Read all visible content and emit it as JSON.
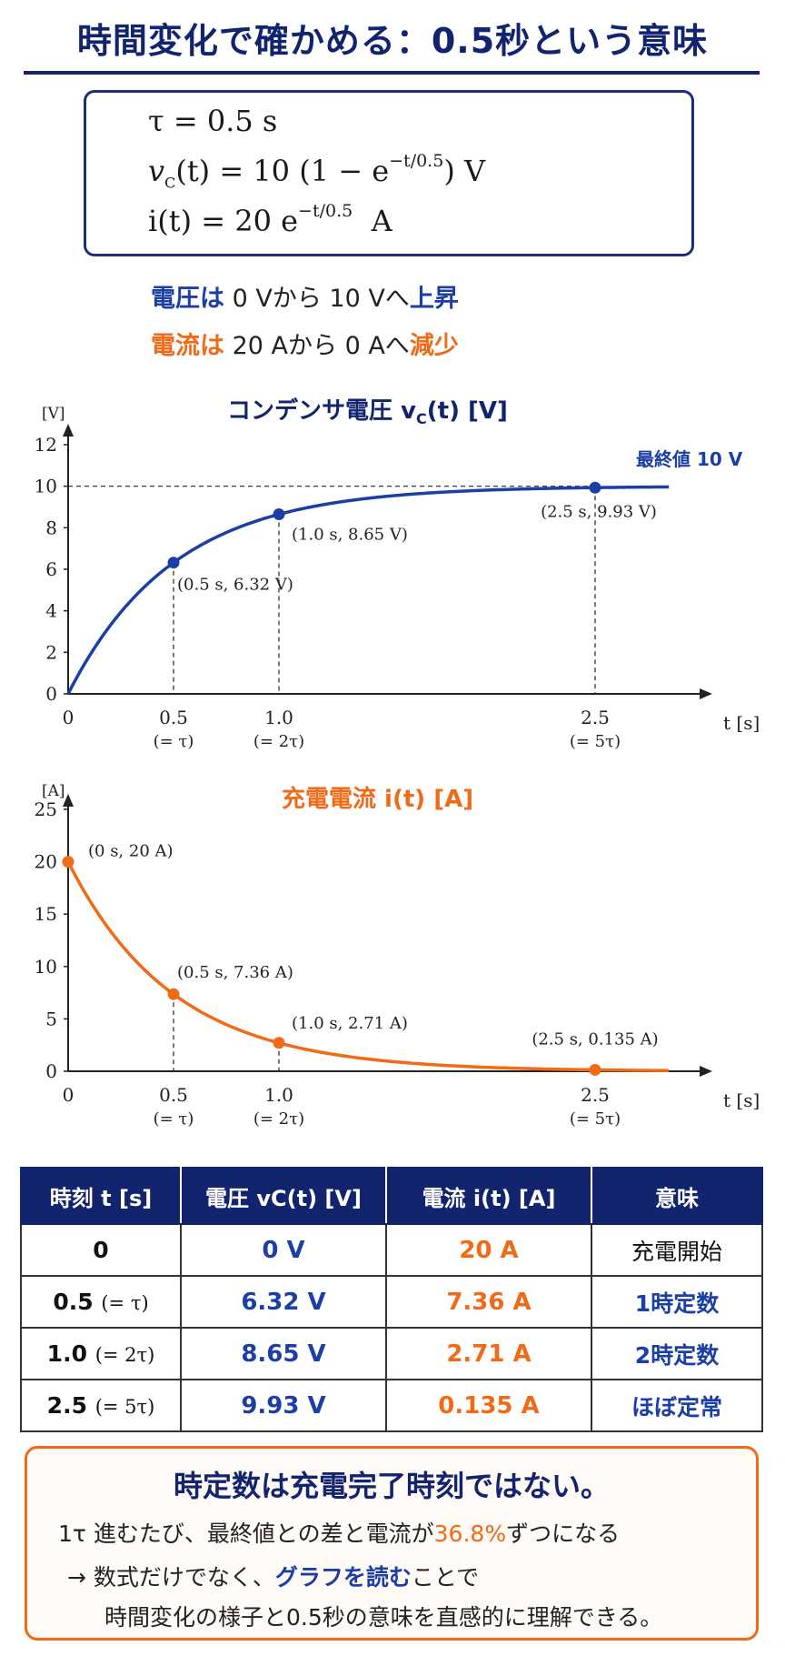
{
  "title": "時間変化で確かめる：0.5秒という意味",
  "formulas": {
    "tau": "τ = 0.5 s",
    "vc_lhs": "v",
    "vc_sub": "C",
    "vc_rest": "(t) = 10 (1 − e",
    "vc_exp": "−t/0.5",
    "vc_unit": ") V",
    "i_lhs": "i(t)   = 20 e",
    "i_exp": "−t/0.5",
    "i_unit": "A"
  },
  "notes": {
    "voltage": {
      "head": "電圧は",
      "mid": " 0 Vから 10 Vへ",
      "tail": "上昇"
    },
    "current": {
      "head": "電流は",
      "mid": " 20 Aから 0 Aへ",
      "tail": "減少"
    }
  },
  "voltage_chart": {
    "title": "コンデンサ電圧 v",
    "title_sub": "C",
    "title_tail": "(t) [V]",
    "unit_label": "[V]",
    "final_label": "最終値 10 V",
    "x_axis_label": "t [s]",
    "point_labels": [
      "(0.5 s, 6.32 V)",
      "(1.0 s, 8.65 V)",
      "(2.5 s, 9.93 V)"
    ],
    "tau_labels": [
      "(= τ)",
      "(= 2τ)",
      "(= 5τ)"
    ]
  },
  "current_chart": {
    "title": "充電電流 i(t) [A]",
    "unit_label": "[A]",
    "x_axis_label": "t [s]",
    "point_labels": [
      "(0 s, 20 A)",
      "(0.5 s, 7.36 A)",
      "(1.0 s, 2.71 A)",
      "(2.5 s, 0.135 A)"
    ],
    "tau_labels": [
      "(= τ)",
      "(= 2τ)",
      "(= 5τ)"
    ]
  },
  "chart_data": [
    {
      "type": "line",
      "title": "コンデンサ電圧 vC(t) [V]",
      "xlabel": "t [s]",
      "ylabel": "[V]",
      "xlim": [
        0,
        2.85
      ],
      "ylim": [
        0,
        12
      ],
      "xticks": [
        0,
        0.5,
        1.0,
        2.5
      ],
      "yticks": [
        0,
        2,
        4,
        6,
        8,
        10,
        12
      ],
      "series": [
        {
          "function": "10(1 − e^(−t/0.5))",
          "color": "#1c3fa6"
        }
      ],
      "points": [
        {
          "x": 0.5,
          "y": 6.32
        },
        {
          "x": 1.0,
          "y": 8.65
        },
        {
          "x": 2.5,
          "y": 9.93
        }
      ],
      "reference_line_y": 10
    },
    {
      "type": "line",
      "title": "充電電流 i(t) [A]",
      "xlabel": "t [s]",
      "ylabel": "[A]",
      "xlim": [
        0,
        2.85
      ],
      "ylim": [
        0,
        25
      ],
      "xticks": [
        0,
        0.5,
        1.0,
        2.5
      ],
      "yticks": [
        0,
        5,
        10,
        15,
        20,
        25
      ],
      "series": [
        {
          "function": "20 e^(−t/0.5)",
          "color": "#f06a17"
        }
      ],
      "points": [
        {
          "x": 0,
          "y": 20
        },
        {
          "x": 0.5,
          "y": 7.36
        },
        {
          "x": 1.0,
          "y": 2.71
        },
        {
          "x": 2.5,
          "y": 0.135
        }
      ]
    }
  ],
  "table": {
    "headers": [
      "時刻 t [s]",
      "電圧 vC(t) [V]",
      "電流 i(t) [A]",
      "意味"
    ],
    "rows": [
      {
        "time": "0",
        "tau": "",
        "voltage": "0 V",
        "current": "20 A",
        "meaning": "充電開始"
      },
      {
        "time": "0.5",
        "tau": "(= τ)",
        "voltage": "6.32 V",
        "current": "7.36 A",
        "meaning": "1時定数"
      },
      {
        "time": "1.0",
        "tau": "(= 2τ)",
        "voltage": "8.65 V",
        "current": "2.71 A",
        "meaning": "2時定数"
      },
      {
        "time": "2.5",
        "tau": "(= 5τ)",
        "voltage": "9.93 V",
        "current": "0.135 A",
        "meaning": "ほぼ定常"
      }
    ]
  },
  "summary": {
    "title": "時定数は充電完了時刻ではない。",
    "line1_a": "1τ 進むたび、最終値との差と電流が",
    "line1_pct": "36.8%",
    "line1_b": "ずつになる",
    "line2_a": "→ 数式だけでなく、",
    "line2_link": "グラフを読む",
    "line2_b": "ことで",
    "line3": "時間変化の様子と0.5秒の意味を直感的に理解できる。"
  },
  "colors": {
    "navy": "#12246e",
    "blue": "#1c3fa6",
    "orange": "#f06a17"
  }
}
